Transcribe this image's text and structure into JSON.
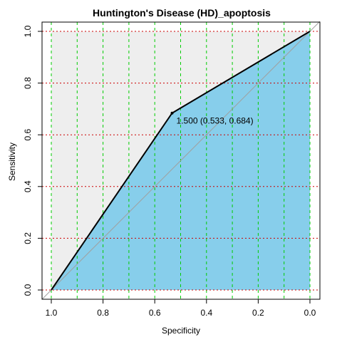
{
  "chart_data": {
    "type": "line",
    "title": "Huntington's Disease (HD)_apoptosis",
    "xlabel": "Specificity",
    "ylabel": "Sensitivity",
    "x_reversed": true,
    "xlim": [
      1.0,
      0.0
    ],
    "ylim": [
      0.0,
      1.0
    ],
    "x_ticks": [
      "1.0",
      "0.8",
      "0.6",
      "0.4",
      "0.2",
      "0.0"
    ],
    "y_ticks": [
      "0.0",
      "0.2",
      "0.4",
      "0.6",
      "0.8",
      "1.0"
    ],
    "x_tick_values": [
      1.0,
      0.8,
      0.6,
      0.4,
      0.2,
      0.0
    ],
    "y_tick_values": [
      0.0,
      0.2,
      0.4,
      0.6,
      0.8,
      1.0
    ],
    "x_grid": [
      1.0,
      0.9,
      0.8,
      0.7,
      0.6,
      0.5,
      0.4,
      0.3,
      0.2,
      0.1,
      0.0
    ],
    "y_grid": [
      0.0,
      0.2,
      0.4,
      0.6,
      0.8,
      1.0
    ],
    "grid": true,
    "series": [
      {
        "specificity": [
          1.0,
          0.533,
          0.0
        ],
        "sensitivity": [
          0.0,
          0.684,
          1.0
        ]
      }
    ],
    "best_point": {
      "specificity": 0.533,
      "sensitivity": 0.684,
      "label": "1.500 (0.533, 0.684)"
    },
    "colors": {
      "auc_fill": "#87CEEB",
      "background_fill": "#EEEEEE",
      "curve": "#000000",
      "diagonal": "#A0A0A0",
      "x_grid": "#00CC00",
      "y_grid": "#CC0000"
    }
  }
}
